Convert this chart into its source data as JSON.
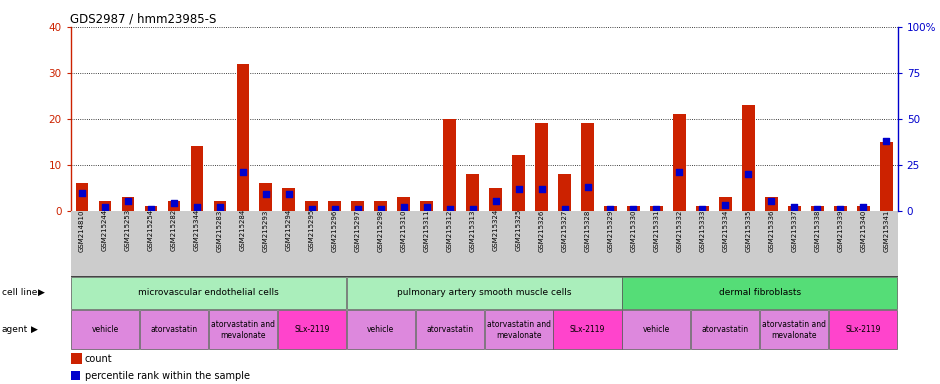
{
  "title": "GDS2987 / hmm23985-S",
  "gsm_labels": [
    "GSM214810",
    "GSM215244",
    "GSM215253",
    "GSM215254",
    "GSM215282",
    "GSM215344",
    "GSM215283",
    "GSM215284",
    "GSM215293",
    "GSM215294",
    "GSM215295",
    "GSM215296",
    "GSM215297",
    "GSM215298",
    "GSM215310",
    "GSM215311",
    "GSM215312",
    "GSM215313",
    "GSM215324",
    "GSM215325",
    "GSM215326",
    "GSM215327",
    "GSM215328",
    "GSM215329",
    "GSM215330",
    "GSM215331",
    "GSM215332",
    "GSM215333",
    "GSM215334",
    "GSM215335",
    "GSM215336",
    "GSM215337",
    "GSM215338",
    "GSM215339",
    "GSM215340",
    "GSM215341"
  ],
  "count_values": [
    6,
    2,
    3,
    1,
    2,
    14,
    2,
    32,
    6,
    5,
    2,
    2,
    2,
    2,
    3,
    2,
    20,
    8,
    5,
    12,
    19,
    8,
    19,
    1,
    1,
    1,
    21,
    1,
    3,
    23,
    3,
    1,
    1,
    1,
    1,
    15
  ],
  "percentile_values": [
    9.5,
    2,
    5,
    1,
    4,
    2,
    2,
    21,
    9,
    9,
    1,
    1,
    1,
    1,
    2,
    2,
    1,
    1,
    5,
    12,
    12,
    1,
    13,
    1,
    1,
    1,
    21,
    1,
    3,
    20,
    5,
    2,
    1,
    1,
    2,
    38
  ],
  "cell_line_groups": [
    {
      "label": "microvascular endothelial cells",
      "start": 0,
      "end": 11,
      "color": "#AAEEBB"
    },
    {
      "label": "pulmonary artery smooth muscle cells",
      "start": 12,
      "end": 23,
      "color": "#AAEEBB"
    },
    {
      "label": "dermal fibroblasts",
      "start": 24,
      "end": 35,
      "color": "#55DD77"
    }
  ],
  "agent_groups": [
    {
      "label": "vehicle",
      "start": 0,
      "end": 2,
      "color": "#DD88DD"
    },
    {
      "label": "atorvastatin",
      "start": 3,
      "end": 5,
      "color": "#DD88DD"
    },
    {
      "label": "atorvastatin and\nmevalonate",
      "start": 6,
      "end": 8,
      "color": "#DD88DD"
    },
    {
      "label": "SLx-2119",
      "start": 9,
      "end": 11,
      "color": "#FF44CC"
    },
    {
      "label": "vehicle",
      "start": 12,
      "end": 14,
      "color": "#DD88DD"
    },
    {
      "label": "atorvastatin",
      "start": 15,
      "end": 17,
      "color": "#DD88DD"
    },
    {
      "label": "atorvastatin and\nmevalonate",
      "start": 18,
      "end": 20,
      "color": "#DD88DD"
    },
    {
      "label": "SLx-2119",
      "start": 21,
      "end": 23,
      "color": "#FF44CC"
    },
    {
      "label": "vehicle",
      "start": 24,
      "end": 26,
      "color": "#DD88DD"
    },
    {
      "label": "atorvastatin",
      "start": 27,
      "end": 29,
      "color": "#DD88DD"
    },
    {
      "label": "atorvastatin and\nmevalonate",
      "start": 30,
      "end": 32,
      "color": "#DD88DD"
    },
    {
      "label": "SLx-2119",
      "start": 33,
      "end": 35,
      "color": "#FF44CC"
    }
  ],
  "left_ylim": [
    0,
    40
  ],
  "right_ylim": [
    0,
    100
  ],
  "left_yticks": [
    0,
    10,
    20,
    30,
    40
  ],
  "right_yticks": [
    0,
    25,
    50,
    75,
    100
  ],
  "bar_color": "#CC2200",
  "dot_color": "#0000CC",
  "axis_color_left": "#CC2200",
  "axis_color_right": "#0000CC",
  "bg_color": "#FFFFFF",
  "plot_bg_color": "#FFFFFF",
  "xtick_bg_color": "#CCCCCC",
  "bar_width": 0.55
}
